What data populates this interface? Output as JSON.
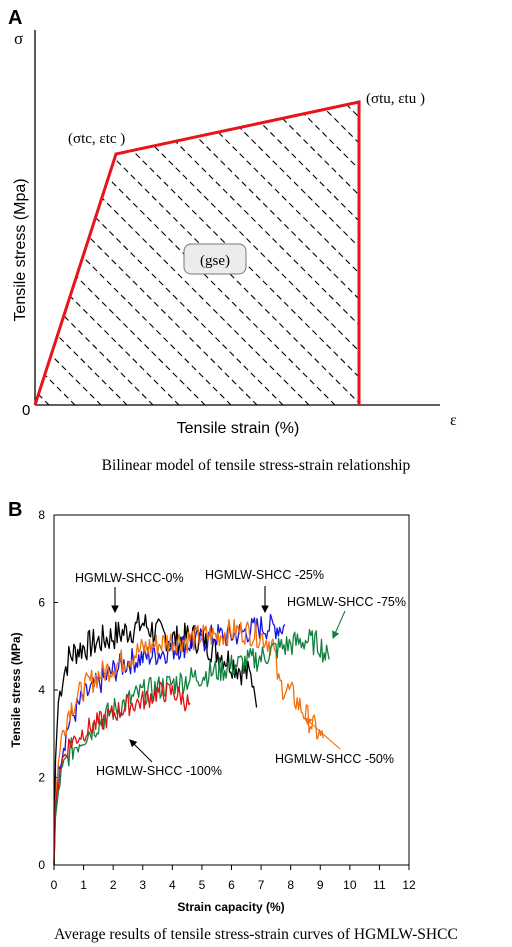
{
  "panel_a": {
    "label": "A",
    "y_symbol": "σ",
    "x_symbol": "ε",
    "ylabel": "Tensile stress (Mpa)",
    "xlabel": "Tensile strain (%)",
    "origin": "0",
    "point_tc": "(σtc, εtc )",
    "point_tu": "(σtu, εtu )",
    "energy_label": "(gse)",
    "caption": "Bilinear model of tensile stress-strain relationship"
  },
  "panel_b": {
    "label": "B",
    "caption": "Average results of tensile stress-strain curves of HGMLW-SHCC"
  },
  "chart_data": [
    {
      "type": "line",
      "title": "",
      "xlabel": "Tensile strain (%)",
      "ylabel": "Tensile stress (Mpa)",
      "series": [
        {
          "x": [
            0,
            1,
            4.2
          ],
          "y": [
            0,
            0.77,
            1
          ]
        }
      ],
      "annotations": [
        "(σtc, εtc )",
        "(σtu, εtu )",
        "(gse)"
      ]
    },
    {
      "type": "line",
      "xlabel": "Strain capacity (%)",
      "ylabel": "Tensile stress (MPa)",
      "xlim": [
        0,
        12
      ],
      "ylim": [
        0,
        8
      ],
      "x_ticks": [
        "0",
        "1",
        "2",
        "3",
        "4",
        "5",
        "6",
        "7",
        "8",
        "9",
        "10",
        "11",
        "12"
      ],
      "y_ticks": [
        "0",
        "2",
        "4",
        "6",
        "8"
      ],
      "grid": false,
      "series": [
        {
          "name": "HGMLW-SHCC-0%",
          "color": "#000000",
          "noise": 0.35,
          "x": [
            0,
            0.05,
            0.15,
            0.3,
            0.5,
            0.8,
            1.2,
            1.6,
            2.0,
            2.4,
            2.8,
            3.0,
            3.4,
            3.8,
            4.2,
            4.6,
            5.0,
            5.4,
            5.8,
            6.2,
            6.6,
            6.8,
            6.85
          ],
          "y": [
            0,
            2.4,
            3.8,
            4.4,
            4.8,
            5.0,
            5.1,
            5.2,
            5.3,
            5.4,
            5.5,
            5.6,
            5.4,
            5.3,
            5.2,
            5.3,
            5.2,
            5.0,
            4.8,
            4.6,
            4.4,
            4.2,
            3.6
          ]
        },
        {
          "name": "HGMLW-SHCC -25%",
          "color": "#1515e0",
          "noise": 0.3,
          "x": [
            0,
            0.05,
            0.2,
            0.5,
            1.0,
            1.5,
            2.0,
            2.5,
            3.0,
            3.5,
            4.0,
            4.5,
            5.0,
            5.5,
            6.0,
            6.5,
            7.0,
            7.5,
            7.8
          ],
          "y": [
            0,
            1.3,
            2.5,
            3.3,
            3.9,
            4.2,
            4.5,
            4.7,
            4.8,
            4.9,
            5.0,
            5.1,
            5.2,
            5.3,
            5.3,
            5.4,
            5.5,
            5.5,
            5.5
          ]
        },
        {
          "name": "HGMLW-SHCC -50%",
          "color": "#f07010",
          "noise": 0.3,
          "x": [
            0,
            0.05,
            0.2,
            0.5,
            1.0,
            1.5,
            2.0,
            2.5,
            3.0,
            3.5,
            4.0,
            4.5,
            5.0,
            5.5,
            6.0,
            6.5,
            7.0,
            7.4,
            7.6,
            8.0,
            8.4,
            8.8,
            9.1
          ],
          "y": [
            0,
            1.5,
            2.8,
            3.6,
            4.1,
            4.4,
            4.6,
            4.8,
            5.0,
            5.1,
            5.2,
            5.2,
            5.3,
            5.3,
            5.4,
            5.4,
            5.3,
            5.1,
            4.2,
            4.0,
            3.6,
            3.2,
            2.9
          ]
        },
        {
          "name": "HGMLW-SHCC -75%",
          "color": "#138040",
          "noise": 0.3,
          "x": [
            0,
            0.05,
            0.2,
            0.5,
            1.0,
            1.5,
            2.0,
            2.5,
            3.0,
            3.5,
            4.0,
            4.5,
            5.0,
            5.5,
            6.0,
            6.5,
            7.0,
            7.5,
            8.0,
            8.5,
            9.0,
            9.3
          ],
          "y": [
            0,
            1.1,
            2.0,
            2.6,
            3.0,
            3.3,
            3.6,
            3.8,
            4.0,
            4.1,
            4.2,
            4.3,
            4.4,
            4.5,
            4.6,
            4.7,
            4.8,
            5.0,
            5.1,
            5.2,
            5.1,
            4.7
          ]
        },
        {
          "name": "HGMLW-SHCC -100%",
          "color": "#e01010",
          "noise": 0.25,
          "x": [
            0,
            0.05,
            0.2,
            0.5,
            1.0,
            1.5,
            2.0,
            2.5,
            3.0,
            3.5,
            4.0,
            4.3,
            4.6
          ],
          "y": [
            0,
            1.4,
            2.3,
            2.8,
            3.1,
            3.3,
            3.5,
            3.7,
            3.8,
            4.0,
            4.0,
            3.9,
            3.7
          ]
        }
      ],
      "annotations": [
        "HGMLW-SHCC-0%",
        "HGMLW-SHCC -25%",
        "HGMLW-SHCC -75%",
        "HGMLW-SHCC -50%",
        "HGMLW-SHCC -100%"
      ]
    }
  ]
}
